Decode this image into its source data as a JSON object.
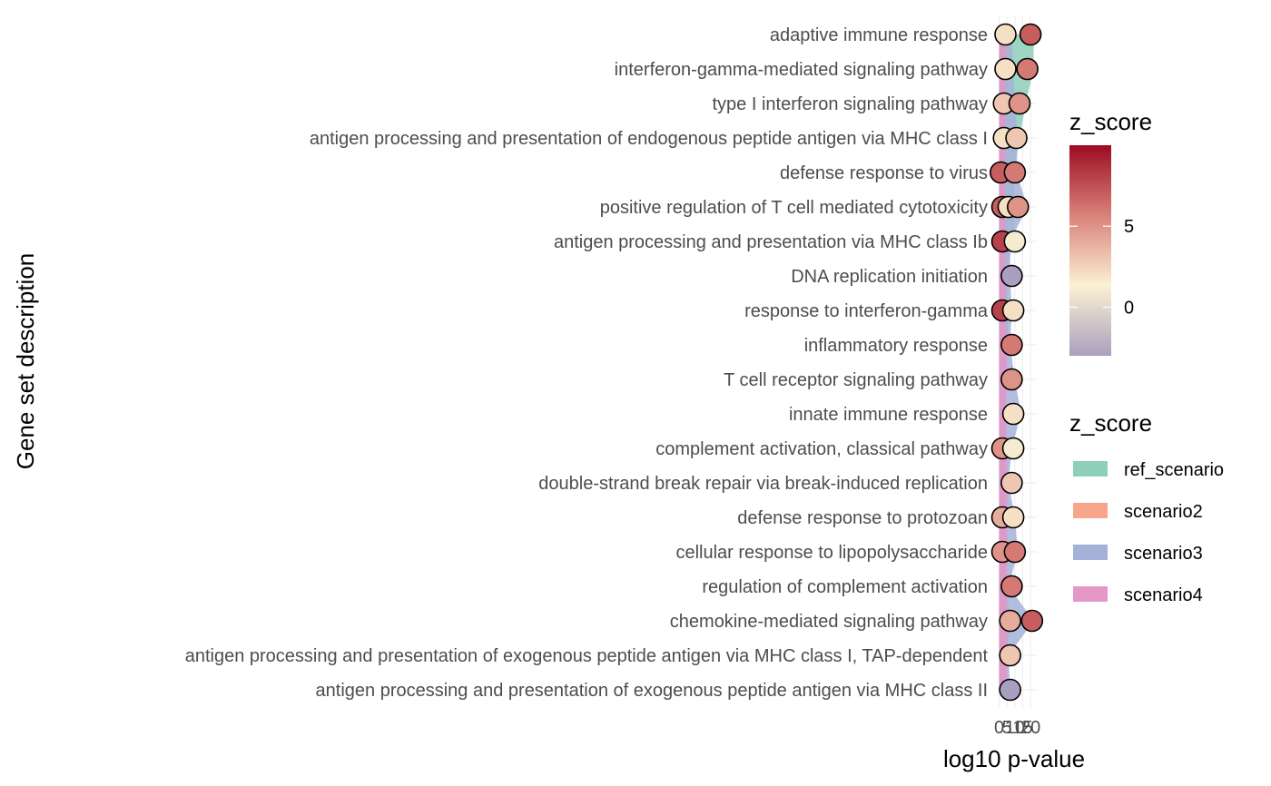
{
  "chart_data": {
    "type": "scatter",
    "title": "",
    "xlabel": "log10 p-value",
    "ylabel": "Gene set description",
    "x_ticks": [
      0,
      5,
      10,
      15,
      20
    ],
    "xlim": [
      -1.5,
      24
    ],
    "grid": true,
    "categories": [
      "adaptive immune response",
      "interferon-gamma-mediated signaling pathway",
      "type I interferon signaling pathway",
      "antigen processing and presentation of endogenous peptide antigen via MHC class I",
      "defense response to virus",
      "positive regulation of T cell mediated cytotoxicity",
      "antigen processing and presentation via MHC class Ib",
      "DNA replication initiation",
      "response to interferon-gamma",
      "inflammatory response",
      "T cell receptor signaling pathway",
      "innate immune response",
      "complement activation, classical pathway",
      "double-strand break repair via break-induced replication",
      "defense response to protozoan",
      "cellular response to lipopolysaccharide",
      "regulation of complement activation",
      "chemokine-mediated signaling pathway",
      "antigen processing and presentation of exogenous peptide antigen via MHC class I, TAP-dependent",
      "antigen processing and presentation of exogenous peptide antigen via MHC class II"
    ],
    "area_series": [
      {
        "name": "ref_scenario",
        "color": "#8ecfb8",
        "values": [
          22,
          22,
          17,
          13,
          9,
          10,
          9,
          4,
          6,
          5,
          4,
          4,
          4,
          3,
          4,
          6,
          3,
          8,
          4,
          2
        ]
      },
      {
        "name": "scenario2",
        "color": "#f8a58c",
        "values": [
          5,
          5,
          4,
          4,
          3,
          3,
          4,
          3,
          4,
          4,
          4,
          4,
          4,
          4,
          4,
          4,
          4,
          4,
          4,
          3
        ]
      },
      {
        "name": "scenario3",
        "color": "#a6b1d8",
        "values": [
          8,
          9,
          10,
          12,
          11,
          18,
          7,
          7,
          8,
          7,
          10,
          14,
          8,
          6,
          10,
          12,
          6,
          22,
          6,
          7
        ]
      },
      {
        "name": "scenario4",
        "color": "#e597c8",
        "values": [
          4,
          4,
          4,
          4,
          4,
          4,
          4,
          4,
          4,
          5,
          5,
          4,
          5,
          5,
          5,
          5,
          5,
          5,
          5,
          5
        ]
      }
    ],
    "points": [
      {
        "x": 4,
        "y": 0,
        "z": 2
      },
      {
        "x": 20,
        "y": 0,
        "z": 7
      },
      {
        "x": 4,
        "y": 1,
        "z": 2
      },
      {
        "x": 18,
        "y": 1,
        "z": 6
      },
      {
        "x": 3,
        "y": 2,
        "z": 3
      },
      {
        "x": 13,
        "y": 2,
        "z": 5
      },
      {
        "x": 3,
        "y": 3,
        "z": 2
      },
      {
        "x": 11,
        "y": 3,
        "z": 3
      },
      {
        "x": 1,
        "y": 4,
        "z": 7
      },
      {
        "x": 10,
        "y": 4,
        "z": 6
      },
      {
        "x": 2,
        "y": 5,
        "z": 7
      },
      {
        "x": 6,
        "y": 5,
        "z": 2
      },
      {
        "x": 12,
        "y": 5,
        "z": 5
      },
      {
        "x": 2,
        "y": 6,
        "z": 8
      },
      {
        "x": 10,
        "y": 6,
        "z": 1
      },
      {
        "x": 8,
        "y": 7,
        "z": -3
      },
      {
        "x": 2,
        "y": 8,
        "z": 8
      },
      {
        "x": 9,
        "y": 8,
        "z": 2
      },
      {
        "x": 8,
        "y": 9,
        "z": 6
      },
      {
        "x": 8,
        "y": 10,
        "z": 5
      },
      {
        "x": 9,
        "y": 11,
        "z": 2
      },
      {
        "x": 2,
        "y": 12,
        "z": 5
      },
      {
        "x": 9,
        "y": 12,
        "z": 1
      },
      {
        "x": 8,
        "y": 13,
        "z": 3
      },
      {
        "x": 2,
        "y": 14,
        "z": 4
      },
      {
        "x": 9,
        "y": 14,
        "z": 2
      },
      {
        "x": 2,
        "y": 15,
        "z": 5
      },
      {
        "x": 10,
        "y": 15,
        "z": 6
      },
      {
        "x": 8,
        "y": 16,
        "z": 6
      },
      {
        "x": 7,
        "y": 17,
        "z": 4
      },
      {
        "x": 21,
        "y": 17,
        "z": 7
      },
      {
        "x": 7,
        "y": 18,
        "z": 3
      },
      {
        "x": 7,
        "y": 19,
        "z": -3
      }
    ],
    "color_legend": {
      "title": "z_score",
      "breaks": [
        5,
        0
      ],
      "range": [
        -3,
        10
      ],
      "colors": [
        "#ab9fbf",
        "#fbf1d3",
        "#d9827a",
        "#9c0c22"
      ]
    },
    "fill_legend": {
      "title": "z_score",
      "items": [
        "ref_scenario",
        "scenario2",
        "scenario3",
        "scenario4"
      ]
    }
  }
}
